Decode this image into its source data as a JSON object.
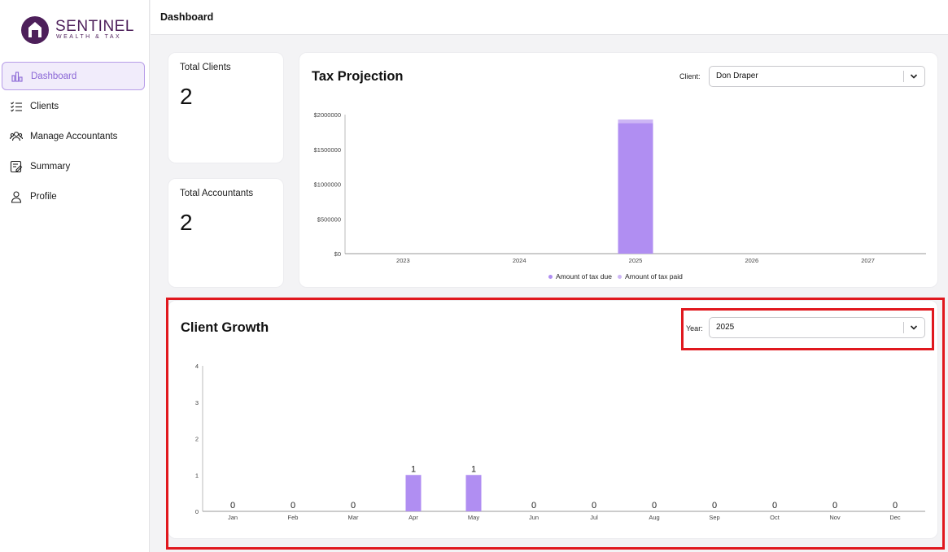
{
  "brand": {
    "name": "SENTINEL",
    "tagline": "WEALTH & TAX"
  },
  "sidebar": {
    "items": [
      {
        "label": "Dashboard",
        "icon": "bar-chart-icon",
        "active": true
      },
      {
        "label": "Clients",
        "icon": "checklist-icon",
        "active": false
      },
      {
        "label": "Manage Accountants",
        "icon": "users-icon",
        "active": false
      },
      {
        "label": "Summary",
        "icon": "summary-icon",
        "active": false
      },
      {
        "label": "Profile",
        "icon": "user-icon",
        "active": false
      }
    ]
  },
  "header": {
    "title": "Dashboard"
  },
  "stats": {
    "clients": {
      "label": "Total Clients",
      "value": "2"
    },
    "accountants": {
      "label": "Total Accountants",
      "value": "2"
    }
  },
  "tax_projection": {
    "title": "Tax Projection",
    "client_label": "Client:",
    "client_value": "Don Draper",
    "legend": [
      {
        "name": "Amount of tax due",
        "color": "#b08ef2"
      },
      {
        "name": "Amount of tax paid",
        "color": "#cdb6f5"
      }
    ]
  },
  "client_growth": {
    "title": "Client Growth",
    "year_label": "Year:",
    "year_value": "2025"
  },
  "colors": {
    "accent": "#8a67d6",
    "bar": "#b08ef2",
    "bar_light": "#cdb6f5",
    "highlight": "#e0181e"
  },
  "chart_data": [
    {
      "type": "bar",
      "title": "Tax Projection",
      "categories": [
        "2023",
        "2024",
        "2025",
        "2026",
        "2027"
      ],
      "series": [
        {
          "name": "Amount of tax due",
          "values": [
            0,
            0,
            1880000,
            0,
            0
          ]
        },
        {
          "name": "Amount of tax paid",
          "values": [
            0,
            0,
            50000,
            0,
            0
          ]
        }
      ],
      "stacked": true,
      "y_ticks": [
        "$0",
        "$500000",
        "$1000000",
        "$1500000",
        "$2000000"
      ],
      "ylim": [
        0,
        2000000
      ],
      "legend": "bottom"
    },
    {
      "type": "bar",
      "title": "Client Growth",
      "categories": [
        "Jan",
        "Feb",
        "Mar",
        "Apr",
        "May",
        "Jun",
        "Jul",
        "Aug",
        "Sep",
        "Oct",
        "Nov",
        "Dec"
      ],
      "values": [
        0,
        0,
        0,
        1,
        1,
        0,
        0,
        0,
        0,
        0,
        0,
        0
      ],
      "y_ticks": [
        "0",
        "1",
        "2",
        "3",
        "4"
      ],
      "ylim": [
        0,
        4
      ],
      "data_labels": true
    }
  ]
}
